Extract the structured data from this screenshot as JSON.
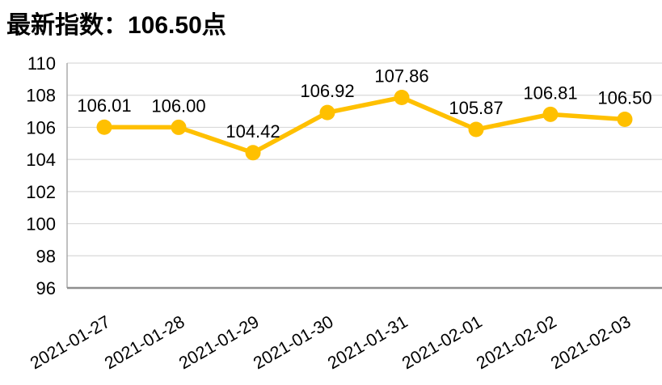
{
  "chart_data": {
    "type": "line",
    "title": "最新指数：106.50点",
    "categories": [
      "2021-01-27",
      "2021-01-28",
      "2021-01-29",
      "2021-01-30",
      "2021-01-31",
      "2021-02-01",
      "2021-02-02",
      "2021-02-03"
    ],
    "series": [
      {
        "name": "index",
        "values": [
          106.01,
          106.0,
          104.42,
          106.92,
          107.86,
          105.87,
          106.81,
          106.5
        ],
        "data_labels": [
          "106.01",
          "106.00",
          "104.42",
          "106.92",
          "107.86",
          "105.87",
          "106.81",
          "106.50"
        ]
      }
    ],
    "xlabel": "",
    "ylabel": "",
    "ylim": [
      96,
      110
    ],
    "yticks": [
      96,
      98,
      100,
      102,
      104,
      106,
      108,
      110
    ],
    "grid": true,
    "legend": "none",
    "x_label_rotation_deg": -30,
    "colors": {
      "line": "#FFC000",
      "marker": "#FFC000",
      "gridline": "#D9D9D9",
      "y_axis_line": "#A6A6A6",
      "x_axis_line": "#8F8F8F",
      "text": "#000000",
      "background": "#FFFFFF"
    }
  }
}
